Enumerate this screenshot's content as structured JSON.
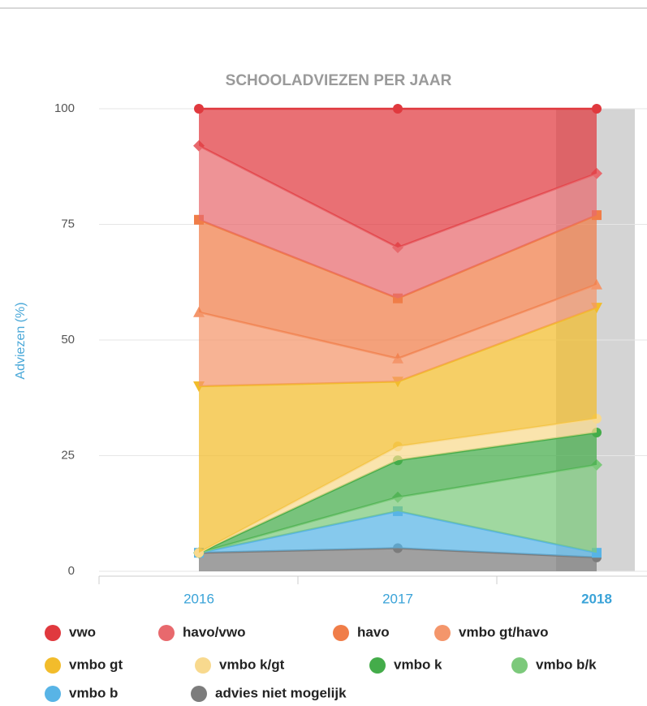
{
  "chart_data": {
    "type": "stacked_area",
    "title": "SCHOOLADVIEZEN PER JAAR",
    "y_label": "Adviezen (%)",
    "categories": [
      "2016",
      "2017",
      "2018"
    ],
    "ylim": [
      0,
      100
    ],
    "yticks": [
      0,
      25,
      50,
      75,
      100
    ],
    "grid": true,
    "series": [
      {
        "name": "vwo",
        "color": "#e0393e",
        "marker": "circle",
        "values": [
          8,
          30,
          14
        ]
      },
      {
        "name": "havo/vwo",
        "color": "#e8696d",
        "marker": "diamond",
        "values": [
          16,
          11,
          9
        ]
      },
      {
        "name": "havo",
        "color": "#f07d48",
        "marker": "square",
        "values": [
          20,
          13,
          15
        ]
      },
      {
        "name": "vmbo gt/havo",
        "color": "#f4966b",
        "marker": "triangle",
        "values": [
          16,
          5,
          5
        ]
      },
      {
        "name": "vmbo gt",
        "color": "#f2bc2b",
        "marker": "triangle-down",
        "values": [
          36,
          14,
          24
        ]
      },
      {
        "name": "vmbo k/gt",
        "color": "#f8d98e",
        "marker": "circle",
        "values": [
          0,
          3,
          3
        ]
      },
      {
        "name": "vmbo k",
        "color": "#44ac4a",
        "marker": "circle",
        "values": [
          0,
          8,
          7
        ]
      },
      {
        "name": "vmbo b/k",
        "color": "#7cc97b",
        "marker": "diamond",
        "values": [
          0,
          3,
          19
        ]
      },
      {
        "name": "vmbo b",
        "color": "#58b4e6",
        "marker": "square",
        "values": [
          0,
          8,
          1
        ]
      },
      {
        "name": "advies niet mogelijk",
        "color": "#7c7c7c",
        "marker": "circle",
        "values": [
          4,
          5,
          3
        ]
      }
    ]
  }
}
